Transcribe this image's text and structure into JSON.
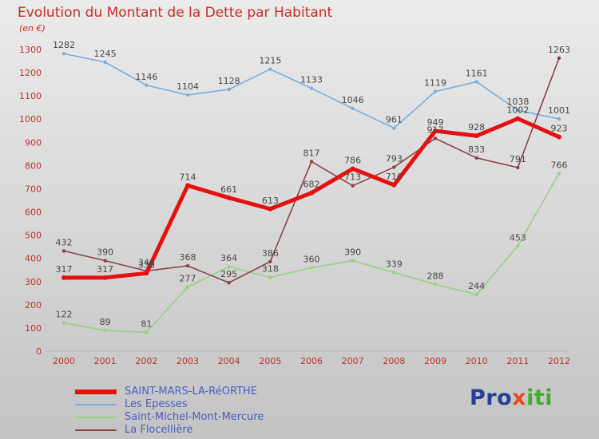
{
  "header": {
    "title": "Evolution du Montant de la Dette par Habitant",
    "subtitle": "(en €)"
  },
  "chart_data": {
    "type": "line",
    "x": [
      "2000",
      "2001",
      "2002",
      "2003",
      "2004",
      "2005",
      "2006",
      "2007",
      "2008",
      "2009",
      "2010",
      "2011",
      "2012"
    ],
    "ylim": [
      0,
      1300
    ],
    "y_ticks": [
      0,
      100,
      200,
      300,
      400,
      500,
      600,
      700,
      800,
      900,
      1000,
      1100,
      1200,
      1300
    ],
    "grid": false,
    "legend_position": "bottom-left",
    "axis_color": "#c03028",
    "label_color": "#474747",
    "series": [
      {
        "name": "SAINT-MARS-LA-RéORTHE",
        "color": "#e51010",
        "width": 5,
        "values": [
          317,
          317,
          336,
          714,
          661,
          613,
          682,
          786,
          716,
          949,
          928,
          1002,
          923
        ]
      },
      {
        "name": "Les Epesses",
        "color": "#79aedd",
        "width": 1.6,
        "values": [
          1282,
          1245,
          1146,
          1104,
          1128,
          1215,
          1133,
          1046,
          961,
          1119,
          1161,
          1038,
          1001
        ]
      },
      {
        "name": "Saint-Michel-Mont-Mercure",
        "color": "#95d382",
        "width": 1.6,
        "values": [
          122,
          89,
          81,
          277,
          364,
          318,
          360,
          390,
          339,
          288,
          244,
          453,
          766
        ]
      },
      {
        "name": "La Flocellière",
        "color": "#8b4242",
        "width": 1.6,
        "values": [
          432,
          390,
          346,
          368,
          295,
          386,
          817,
          713,
          793,
          917,
          833,
          791,
          1263
        ]
      }
    ]
  },
  "logo": {
    "pro": "Pro",
    "x": "x",
    "iti": "iti",
    "colors": {
      "pro": "#24409a",
      "x": "#e8491d",
      "iti": "#3faf2a"
    }
  }
}
